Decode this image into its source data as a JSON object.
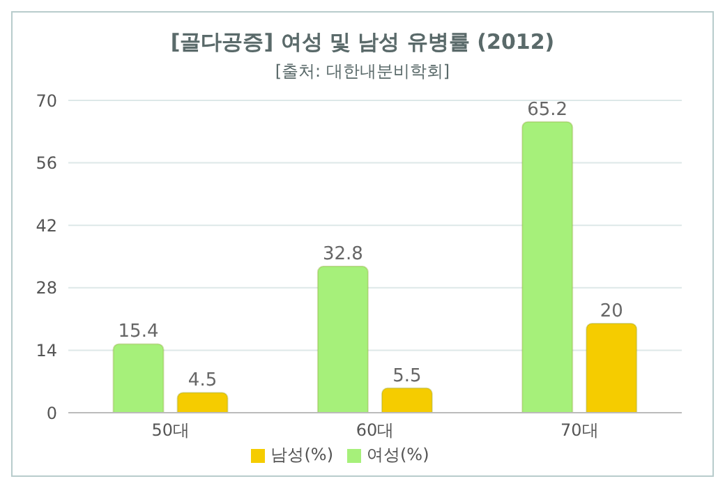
{
  "chart_data": {
    "type": "bar",
    "title": "[골다공증] 여성 및 남성 유병률 (2012)",
    "subtitle": "[출처: 대한내분비학회]",
    "categories": [
      "50대",
      "60대",
      "70대"
    ],
    "series": [
      {
        "name": "여성(%)",
        "color": "#a6f07a",
        "values": [
          15.4,
          32.8,
          65.2
        ]
      },
      {
        "name": "남성(%)",
        "color": "#f5cc00",
        "values": [
          4.5,
          5.5,
          20
        ]
      }
    ],
    "ylim": [
      0,
      70
    ],
    "yticks": [
      0,
      14,
      28,
      42,
      56,
      70
    ],
    "grid": "y",
    "legend": "bottom",
    "data_labels": true
  }
}
